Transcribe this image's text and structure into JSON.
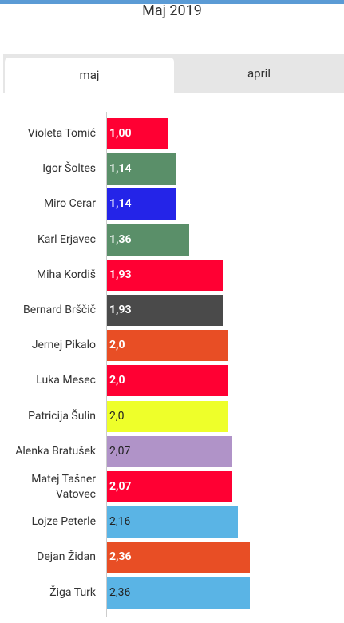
{
  "tabs": [
    "maj",
    "april"
  ],
  "chart_data": {
    "type": "bar",
    "orientation": "horizontal",
    "title": "Maj 2019",
    "categories": [
      "Violeta Tomić",
      "Igor Šoltes",
      "Miro Cerar",
      "Karl Erjavec",
      "Miha Kordiš",
      "Bernard Brščič",
      "Jernej Pikalo",
      "Luka Mesec",
      "Patricija Šulin",
      "Alenka Bratušek",
      "Matej Tašner Vatovec",
      "Lojze Peterle",
      "Dejan Židan",
      "Žiga Turk"
    ],
    "values": [
      1.0,
      1.14,
      1.14,
      1.36,
      1.93,
      1.93,
      2.0,
      2.0,
      2.0,
      2.07,
      2.07,
      2.16,
      2.36,
      2.36
    ],
    "value_labels": [
      "1,00",
      "1,14",
      "1,14",
      "1,36",
      "1,93",
      "1,93",
      "2,0",
      "2,0",
      "2,0",
      "2,07",
      "2,07",
      "2,16",
      "2,36",
      "2,36"
    ],
    "colors": [
      "#ff0033",
      "#5a8f69",
      "#2424e8",
      "#5a8f69",
      "#ff0033",
      "#4a4a4a",
      "#e84e25",
      "#ff0033",
      "#eeff2a",
      "#b093c8",
      "#ff0033",
      "#5ab4e5",
      "#e84e25",
      "#5ab4e5"
    ]
  }
}
